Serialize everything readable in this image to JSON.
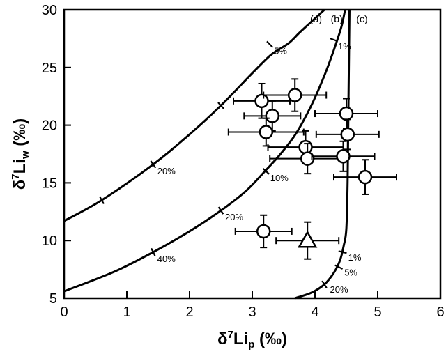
{
  "chart_data": {
    "type": "scatter",
    "title": "",
    "xlim": [
      0,
      6
    ],
    "ylim": [
      5,
      30
    ],
    "x_ticks": [
      "0",
      "1",
      "2",
      "3",
      "4",
      "5",
      "6"
    ],
    "y_ticks": [
      "5",
      "10",
      "15",
      "20",
      "25",
      "30"
    ],
    "xlabel": {
      "base": "δ",
      "sup": "7",
      "main": "Li",
      "sub": "p",
      "units": " (‰)"
    },
    "ylabel": {
      "base": "δ",
      "sup": "7",
      "main": "Li",
      "sub": "w",
      "units": " (‰)"
    },
    "grid": false,
    "curves": [
      {
        "name": "(a)",
        "x": [
          0.0,
          0.6,
          1.42,
          2.0,
          2.5,
          3.0,
          3.3,
          3.58,
          3.75,
          3.95,
          4.15
        ],
        "y": [
          11.7,
          13.5,
          16.6,
          19.2,
          21.7,
          24.5,
          26.1,
          27.1,
          28.0,
          29.0,
          30.0
        ],
        "marks": [
          {
            "x": 0.6,
            "y": 13.5,
            "label": ""
          },
          {
            "x": 1.42,
            "y": 16.6,
            "label": "20%"
          },
          {
            "x": 2.5,
            "y": 21.7,
            "label": ""
          },
          {
            "x": 3.28,
            "y": 27.0,
            "label": "5%"
          }
        ]
      },
      {
        "name": "(b)",
        "x": [
          0.0,
          0.8,
          1.42,
          2.0,
          2.5,
          2.9,
          3.2,
          3.45,
          3.7,
          3.95,
          4.15,
          4.3,
          4.42,
          4.48
        ],
        "y": [
          5.6,
          7.3,
          9.0,
          10.8,
          12.6,
          14.3,
          16.0,
          17.5,
          19.3,
          21.8,
          24.3,
          26.5,
          28.5,
          30.0
        ],
        "marks": [
          {
            "x": 1.42,
            "y": 9.0,
            "label": "40%"
          },
          {
            "x": 2.5,
            "y": 12.6,
            "label": "20%"
          },
          {
            "x": 3.22,
            "y": 16.0,
            "label": "10%"
          },
          {
            "x": 4.3,
            "y": 27.4,
            "label": "1%"
          }
        ]
      },
      {
        "name": "(c)",
        "x": [
          3.68,
          3.95,
          4.15,
          4.3,
          4.4,
          4.46,
          4.5,
          4.52,
          4.53,
          4.54,
          4.55
        ],
        "y": [
          5.0,
          5.5,
          6.2,
          7.2,
          8.3,
          9.6,
          11.0,
          15.0,
          20.0,
          25.0,
          30.0
        ],
        "marks": [
          {
            "x": 4.15,
            "y": 6.2,
            "label": "20%"
          },
          {
            "x": 4.38,
            "y": 7.7,
            "label": "5%"
          },
          {
            "x": 4.44,
            "y": 9.0,
            "label": "1%"
          }
        ]
      }
    ],
    "series": [
      {
        "marker": "circle",
        "points": [
          {
            "x": 3.15,
            "y": 22.1,
            "xerr": 0.45,
            "yerr": 1.5
          },
          {
            "x": 3.68,
            "y": 22.6,
            "xerr": 0.5,
            "yerr": 1.4
          },
          {
            "x": 3.32,
            "y": 20.8,
            "xerr": 0.45,
            "yerr": 1.3
          },
          {
            "x": 3.22,
            "y": 19.4,
            "xerr": 0.6,
            "yerr": 1.2
          },
          {
            "x": 4.5,
            "y": 21.0,
            "xerr": 0.5,
            "yerr": 1.3
          },
          {
            "x": 4.52,
            "y": 19.2,
            "xerr": 0.5,
            "yerr": 1.3
          },
          {
            "x": 3.85,
            "y": 18.1,
            "xerr": 0.6,
            "yerr": 1.4
          },
          {
            "x": 3.88,
            "y": 17.1,
            "xerr": 0.6,
            "yerr": 1.3
          },
          {
            "x": 4.45,
            "y": 17.3,
            "xerr": 0.5,
            "yerr": 1.3
          },
          {
            "x": 4.8,
            "y": 15.5,
            "xerr": 0.5,
            "yerr": 1.5
          },
          {
            "x": 3.18,
            "y": 10.8,
            "xerr": 0.45,
            "yerr": 1.4
          }
        ]
      },
      {
        "marker": "triangle",
        "points": [
          {
            "x": 3.88,
            "y": 10.0,
            "xerr": 0.5,
            "yerr": 1.6
          }
        ]
      }
    ]
  }
}
